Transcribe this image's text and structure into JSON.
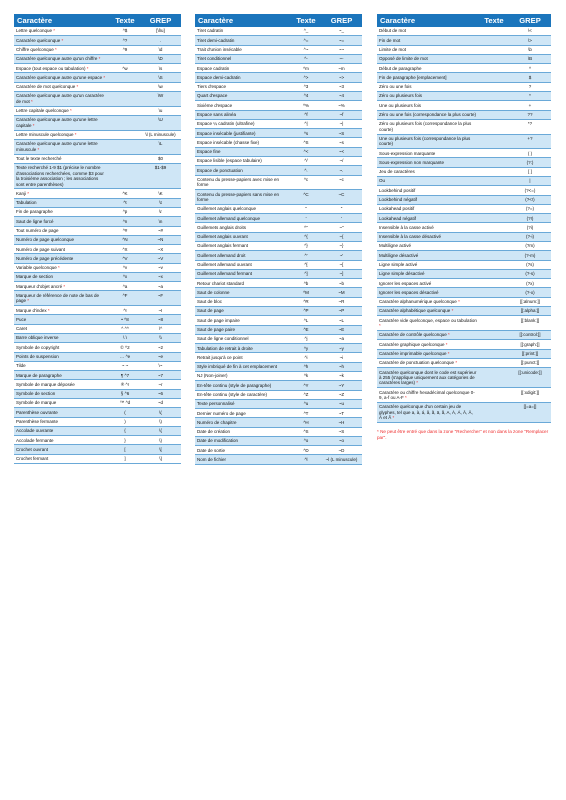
{
  "headers": {
    "name": "Caractère",
    "text": "Texte",
    "grep": "GREP"
  },
  "columns": [
    [
      {
        "n": "Lettre quelconque",
        "s": 1,
        "t": "^$",
        "g": "[\\l\\u]"
      },
      {
        "n": "Caractère quelconque",
        "s": 1,
        "t": "^?",
        "g": "."
      },
      {
        "n": "Chiffre quelconque",
        "s": 1,
        "t": "^9",
        "g": "\\d"
      },
      {
        "n": "Caractère quelconque autre qu'un chiffre",
        "s": 1,
        "t": "",
        "g": "\\D"
      },
      {
        "n": "Espace (tout espace ou tabulation)",
        "s": 1,
        "t": "^w",
        "g": "\\s"
      },
      {
        "n": "Caractère quelconque autre qu'une espace",
        "s": 1,
        "t": "",
        "g": "\\S"
      },
      {
        "n": "Caractère de mot quelconque",
        "s": 1,
        "t": "",
        "g": "\\w"
      },
      {
        "n": "Caractère quelconque autre qu'un caractère de mot",
        "s": 1,
        "t": "",
        "g": "\\W"
      },
      {
        "n": "Lettre capitale quelconque",
        "s": 1,
        "t": "",
        "g": "\\u"
      },
      {
        "n": "Caractère quelconque autre qu'une lettre capitale",
        "s": 1,
        "t": "",
        "g": "\\U"
      },
      {
        "n": "Lettre minuscule quelconque",
        "s": 1,
        "t": "",
        "g": "\\l (L minuscule)"
      },
      {
        "n": "Caractère quelconque autre qu'une lettre minuscule",
        "s": 1,
        "t": "",
        "g": "\\L"
      },
      {
        "n": "Tout le texte recherché",
        "s": 0,
        "t": "",
        "g": "$0"
      },
      {
        "n": "Texte recherché 1-9 $1 (précise le nombre d'associations recherchées, comme $3 pour la troisième association ; les associations sont entre parenthèses)",
        "s": 0,
        "t": "",
        "g": "$1-$9"
      },
      {
        "n": "Kanji",
        "s": 1,
        "t": "^K",
        "g": "\\K"
      },
      {
        "n": "Tabulation",
        "s": 0,
        "t": "^t",
        "g": "\\t"
      },
      {
        "n": "Fin de paragraphe",
        "s": 0,
        "t": "^p",
        "g": "\\r"
      },
      {
        "n": "Saut de ligne forcé",
        "s": 0,
        "t": "^n",
        "g": "\\n"
      },
      {
        "n": "Tout numéro de page",
        "s": 0,
        "t": "^#",
        "g": "~#"
      },
      {
        "n": "Numéro de page quelconque",
        "s": 0,
        "t": "^N",
        "g": "~N"
      },
      {
        "n": "Numéro de page suivant",
        "s": 0,
        "t": "^X",
        "g": "~X"
      },
      {
        "n": "Numéro de page précédente",
        "s": 0,
        "t": "^V",
        "g": "~V"
      },
      {
        "n": "Variable quelconque",
        "s": 1,
        "t": "^v",
        "g": "~v"
      },
      {
        "n": "Marque de section",
        "s": 0,
        "t": "^x",
        "g": "~x"
      },
      {
        "n": "Marqueur d'objet ancré",
        "s": 1,
        "t": "^a",
        "g": "~a"
      },
      {
        "n": "Marqueur de référence de note de bas de page",
        "s": 1,
        "t": "^F",
        "g": "~F"
      },
      {
        "n": "Marque d'index",
        "s": 1,
        "t": "^I",
        "g": "~I"
      },
      {
        "n": "Puce",
        "s": 0,
        "t": "•",
        "t2": "^8",
        "g": "~8"
      },
      {
        "n": "Caret",
        "s": 0,
        "t": "^",
        "t2": "^^",
        "g": "\\^"
      },
      {
        "n": "Barre oblique inverse",
        "s": 0,
        "t": "\\",
        "t2": "\\",
        "g": "\\\\"
      },
      {
        "n": "Symbole de copyright",
        "s": 0,
        "t": "©",
        "t2": "^2",
        "g": "~2"
      },
      {
        "n": "Points de suspension",
        "s": 0,
        "t": "…",
        "t2": "^e",
        "g": "~e"
      },
      {
        "n": "Tilde",
        "s": 0,
        "t": "~",
        "t2": "~",
        "g": "\\~"
      },
      {
        "n": "Marque de paragraphe",
        "s": 0,
        "t": "¶",
        "t2": "^7",
        "g": "~7"
      },
      {
        "n": "Symbole de marque déposée",
        "s": 0,
        "t": "®",
        "t2": "^r",
        "g": "~r"
      },
      {
        "n": "Symbole de section",
        "s": 0,
        "t": "§",
        "t2": "^6",
        "g": "~6"
      },
      {
        "n": "Symbole de marque",
        "s": 0,
        "t": "™",
        "t2": "^d",
        "g": "~d"
      },
      {
        "n": "Parenthèse ouvrante",
        "s": 0,
        "t": "(",
        "g": "\\("
      },
      {
        "n": "Parenthèse fermante",
        "s": 0,
        "t": ")",
        "g": "\\)"
      },
      {
        "n": "Accolade ouvrante",
        "s": 0,
        "t": "{",
        "g": "\\{"
      },
      {
        "n": "Accolade fermante",
        "s": 0,
        "t": "}",
        "g": "\\}"
      },
      {
        "n": "Crochet ouvrant",
        "s": 0,
        "t": "[",
        "g": "\\["
      },
      {
        "n": "Crochet fermant",
        "s": 0,
        "t": "]",
        "g": "\\]"
      }
    ],
    [
      {
        "n": "Tiret cadratin",
        "s": 0,
        "t": "^_",
        "g": "~_"
      },
      {
        "n": "Tiret demi-cadratin",
        "s": 0,
        "t": "^=",
        "g": "~="
      },
      {
        "n": "Trait d'union insécable",
        "s": 0,
        "t": "^~",
        "g": "~~"
      },
      {
        "n": "Tiret conditionnel",
        "s": 0,
        "t": "^-",
        "g": "~-"
      },
      {
        "n": "Espace cadratin",
        "s": 0,
        "t": "^m",
        "g": "~m"
      },
      {
        "n": "Espace demi-cadratin",
        "s": 0,
        "t": "^>",
        "g": "~>"
      },
      {
        "n": "Tiers d'espace",
        "s": 0,
        "t": "^3",
        "g": "~3"
      },
      {
        "n": "Quart d'espace",
        "s": 0,
        "t": "^4",
        "g": "~4"
      },
      {
        "n": "Sixième d'espace",
        "s": 0,
        "t": "^%",
        "g": "~%"
      },
      {
        "n": "Espace sans alinéa",
        "s": 0,
        "t": "^f",
        "g": "~f"
      },
      {
        "n": "Espace ¼ cadratin (ultrafine)",
        "s": 0,
        "t": "^|",
        "g": "~|"
      },
      {
        "n": "Espace insécable (justifiante)",
        "s": 0,
        "t": "^s",
        "g": "~S"
      },
      {
        "n": "Espace insécable (chasse fixe)",
        "s": 0,
        "t": "^S",
        "g": "~s"
      },
      {
        "n": "Espace fine",
        "s": 0,
        "t": "^<",
        "g": "~<"
      },
      {
        "n": "Espace lisible (espace tabulaire)",
        "s": 0,
        "t": "^/",
        "g": "~/"
      },
      {
        "n": "Espace de ponctuation",
        "s": 0,
        "t": "^.",
        "g": "~."
      },
      {
        "n": "Contenu du presse-papiers avec mise en forme",
        "s": 0,
        "t": "^c",
        "g": "~c"
      },
      {
        "n": "Contenu du presse-papiers sans mise en forme",
        "s": 0,
        "t": "^C",
        "g": "~C"
      },
      {
        "n": "Guillemet anglais quelconque",
        "s": 0,
        "t": "\"",
        "g": "\""
      },
      {
        "n": "Guillemet allemand quelconque",
        "s": 0,
        "t": "'",
        "g": "'"
      },
      {
        "n": "Guillemets anglais droits",
        "s": 0,
        "t": "^\"",
        "g": "~\""
      },
      {
        "n": "Guillemet anglais ouvrant",
        "s": 0,
        "t": "^{",
        "g": "~{"
      },
      {
        "n": "Guillemet anglais fermant",
        "s": 0,
        "t": "^}",
        "g": "~}"
      },
      {
        "n": "Guillemet allemand droit",
        "s": 0,
        "t": "^'",
        "g": "~'"
      },
      {
        "n": "Guillemet allemand ouvrant",
        "s": 0,
        "t": "^[",
        "g": "~["
      },
      {
        "n": "Guillemet allemand fermant",
        "s": 0,
        "t": "^]",
        "g": "~]"
      },
      {
        "n": "Retour chariot standard",
        "s": 0,
        "t": "^b",
        "g": "~b"
      },
      {
        "n": "Saut de colonne",
        "s": 0,
        "t": "^M",
        "g": "~M"
      },
      {
        "n": "Saut de bloc",
        "s": 0,
        "t": "^R",
        "g": "~R"
      },
      {
        "n": "Saut de page",
        "s": 0,
        "t": "^P",
        "g": "~P"
      },
      {
        "n": "Saut de page impaire",
        "s": 0,
        "t": "^L",
        "g": "~L"
      },
      {
        "n": "Saut de page paire",
        "s": 0,
        "t": "^E",
        "g": "~E"
      },
      {
        "n": "Saut de ligne conditionnel",
        "s": 0,
        "t": "^j",
        "g": "~a"
      },
      {
        "n": "Tabulation de retrait à droite",
        "s": 0,
        "t": "^y",
        "g": "~y"
      },
      {
        "n": "Retrait jusqu'à ce point",
        "s": 0,
        "t": "^i",
        "g": "~i"
      },
      {
        "n": "Style imbriqué de fin à cet emplacement",
        "s": 0,
        "t": "^h",
        "g": "~h"
      },
      {
        "n": "NJ (Non-joiner)",
        "s": 0,
        "t": "^k",
        "g": "~k"
      },
      {
        "n": "En-tête continu (style de paragraphe)",
        "s": 0,
        "t": "^Y",
        "g": "~Y"
      },
      {
        "n": "En-tête continu (style de caractère)",
        "s": 0,
        "t": "^Z",
        "g": "~Z"
      },
      {
        "n": "Texte personnalisé",
        "s": 0,
        "t": "^u",
        "g": "~u"
      },
      {
        "n": "Dernier numéro de page",
        "s": 0,
        "t": "^T",
        "g": "~T"
      },
      {
        "n": "Numéro de chapitre",
        "s": 0,
        "t": "^H",
        "g": "~H"
      },
      {
        "n": "Date de création",
        "s": 0,
        "t": "^S",
        "g": "~S"
      },
      {
        "n": "Date de modification",
        "s": 0,
        "t": "^o",
        "g": "~o"
      },
      {
        "n": "Date de sortie",
        "s": 0,
        "t": "^D",
        "g": "~D"
      },
      {
        "n": "Nom de fichier",
        "s": 0,
        "t": "^l",
        "g": "~l (L minuscule)"
      }
    ],
    [
      {
        "n": "Début de mot",
        "s": 0,
        "t": "",
        "g": "\\<"
      },
      {
        "n": "Fin de mot",
        "s": 0,
        "t": "",
        "g": "\\>"
      },
      {
        "n": "Limite de mot",
        "s": 0,
        "t": "",
        "g": "\\b"
      },
      {
        "n": "Opposé de limite de mot",
        "s": 0,
        "t": "",
        "g": "\\B"
      },
      {
        "n": "Début de paragraphe",
        "s": 0,
        "t": "",
        "g": "^"
      },
      {
        "n": "Fin de paragraphe [emplacement]",
        "s": 0,
        "t": "",
        "g": "$"
      },
      {
        "n": "Zéro ou une fois",
        "s": 0,
        "t": "",
        "g": "?"
      },
      {
        "n": "Zéro ou plusieurs fois",
        "s": 0,
        "t": "",
        "g": "*"
      },
      {
        "n": "Une ou plusieurs fois",
        "s": 0,
        "t": "",
        "g": "+"
      },
      {
        "n": "Zéro ou une fois (correspondance la plus courte)",
        "s": 0,
        "t": "",
        "g": "??"
      },
      {
        "n": "Zéro ou plusieurs fois (correspondance la plus courte)",
        "s": 0,
        "t": "",
        "g": "*?"
      },
      {
        "n": "Une ou plusieurs fois (correspondance la plus courte)",
        "s": 0,
        "t": "",
        "g": "+?"
      },
      {
        "n": "Sous-expression marquante",
        "s": 0,
        "t": "",
        "g": "( )"
      },
      {
        "n": "Sous-expression non marquante",
        "s": 0,
        "t": "",
        "g": "(?:)"
      },
      {
        "n": "Jeu de caractères",
        "s": 0,
        "t": "",
        "g": "[ ]"
      },
      {
        "n": "Ou",
        "s": 0,
        "t": "",
        "g": "|"
      },
      {
        "n": "Lookbehind positif",
        "s": 0,
        "t": "",
        "g": "(?<=)"
      },
      {
        "n": "Lookbehind négatif",
        "s": 0,
        "t": "",
        "g": "(?<!)"
      },
      {
        "n": "Lookahead positif",
        "s": 0,
        "t": "",
        "g": "(?=)"
      },
      {
        "n": "Lookahead négatif",
        "s": 0,
        "t": "",
        "g": "(?!)"
      },
      {
        "n": "Insensible à la casse activé",
        "s": 0,
        "t": "",
        "g": "(?i)"
      },
      {
        "n": "Insensible à la casse désactivé",
        "s": 0,
        "t": "",
        "g": "(?-i)"
      },
      {
        "n": "Multiligne activé",
        "s": 0,
        "t": "",
        "g": "(?m)"
      },
      {
        "n": "Multiligne désactivé",
        "s": 0,
        "t": "",
        "g": "(?-m)"
      },
      {
        "n": "Ligne simple activé",
        "s": 0,
        "t": "",
        "g": "(?s)"
      },
      {
        "n": "Ligne simple désactivé",
        "s": 0,
        "t": "",
        "g": "(?-s)"
      },
      {
        "n": "Ignorer les espaces activé",
        "s": 0,
        "t": "",
        "g": "(?x)"
      },
      {
        "n": "Ignorer les espaces désactivé",
        "s": 0,
        "t": "",
        "g": "(?-x)"
      },
      {
        "n": "Caractère alphanumérique quelconque",
        "s": 1,
        "t": "",
        "g": "[[:alnum:]]"
      },
      {
        "n": "Caractère alphabétique quelconque",
        "s": 1,
        "t": "",
        "g": "[[:alpha:]]"
      },
      {
        "n": "Caractère vide quelconque, espace ou tabulation",
        "s": 1,
        "t": "",
        "g": "[[:blank:]]"
      },
      {
        "n": "Caractère de contrôle quelconque",
        "s": 1,
        "t": "",
        "g": "[[:control:]]"
      },
      {
        "n": "Caractère graphique quelconque",
        "s": 1,
        "t": "",
        "g": "[[:graph:]]"
      },
      {
        "n": "Caractère imprimable quelconque",
        "s": 1,
        "t": "",
        "g": "[[:print:]]"
      },
      {
        "n": "Caractère de ponctuation quelconque",
        "s": 1,
        "t": "",
        "g": "[[:punct:]]"
      },
      {
        "n": "Caractère quelconque dont le code est supérieur à 255 (s'applique uniquement aux catégories de caractères larges)",
        "s": 1,
        "t": "",
        "g": "[[:unicode:]]"
      },
      {
        "n": "Caractère ou chiffre hexadécimal quelconque 0-9, a-f ou A-F",
        "s": 1,
        "t": "",
        "g": "[[:xdigit:]]"
      },
      {
        "n": "Caractère quelconque d'un certain jeu de glyphes, tel que a, à, á, â, ã, ä, å, A, À, Á, Â, Ã, Ä et Å",
        "s": 1,
        "t": "",
        "g": "[[=a=]]"
      }
    ]
  ],
  "note": "* Ne peut être entré que dans la zone \"Rechercher\" et non dans la zone \"Remplacer par\"."
}
